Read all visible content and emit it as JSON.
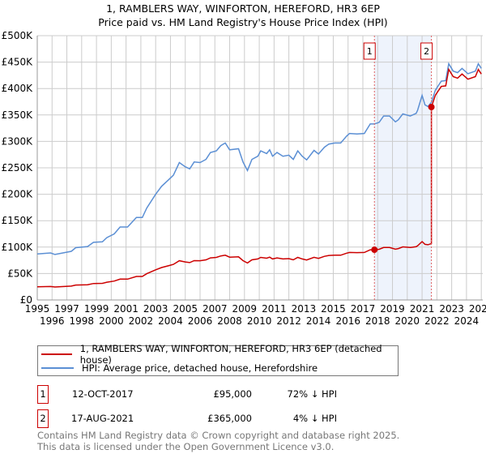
{
  "title": "1, RAMBLERS WAY, WINFORTON, HEREFORD, HR3 6EP",
  "subtitle": "Price paid vs. HM Land Registry's House Price Index (HPI)",
  "chart_data": {
    "type": "line",
    "xlim": [
      1995,
      2025.1
    ],
    "ylim": [
      0,
      500000
    ],
    "x_ticks": [
      "1995",
      "1996",
      "1997",
      "1998",
      "1999",
      "2000",
      "2001",
      "2002",
      "2003",
      "2004",
      "2005",
      "2006",
      "2007",
      "2008",
      "2009",
      "2010",
      "2011",
      "2012",
      "2013",
      "2014",
      "2015",
      "2016",
      "2017",
      "2018",
      "2019",
      "2020",
      "2021",
      "2022",
      "2023",
      "2024",
      "2025"
    ],
    "y_ticks": [
      {
        "v": 0,
        "label": "£0"
      },
      {
        "v": 50000,
        "label": "£50K"
      },
      {
        "v": 100000,
        "label": "£100K"
      },
      {
        "v": 150000,
        "label": "£150K"
      },
      {
        "v": 200000,
        "label": "£200K"
      },
      {
        "v": 250000,
        "label": "£250K"
      },
      {
        "v": 300000,
        "label": "£300K"
      },
      {
        "v": 350000,
        "label": "£350K"
      },
      {
        "v": 400000,
        "label": "£400K"
      },
      {
        "v": 450000,
        "label": "£450K"
      },
      {
        "v": 500000,
        "label": "£500K"
      }
    ],
    "grid": true,
    "hpi_series": {
      "name": "HPI: Average price, detached house, Herefordshire",
      "color": "#5b8fd4",
      "x": [
        1995.0,
        1995.9,
        1996.2,
        1997.3,
        1997.6,
        1998.4,
        1998.8,
        1999.4,
        1999.7,
        2000.2,
        2000.6,
        2001.1,
        2001.7,
        2002.1,
        2002.4,
        2003.0,
        2003.4,
        2003.9,
        2004.2,
        2004.6,
        2005.0,
        2005.3,
        2005.6,
        2006.0,
        2006.4,
        2006.7,
        2007.1,
        2007.4,
        2007.7,
        2008.0,
        2008.6,
        2008.9,
        2009.2,
        2009.5,
        2009.9,
        2010.1,
        2010.5,
        2010.7,
        2010.9,
        2011.2,
        2011.6,
        2012.0,
        2012.3,
        2012.6,
        2012.9,
        2013.2,
        2013.7,
        2014.0,
        2014.4,
        2014.7,
        2015.1,
        2015.5,
        2015.9,
        2016.1,
        2016.6,
        2017.1,
        2017.5,
        2017.78,
        2018.1,
        2018.4,
        2018.8,
        2019.2,
        2019.4,
        2019.7,
        2020.2,
        2020.6,
        2020.7,
        2021.0,
        2021.2,
        2021.4,
        2021.63,
        2021.9,
        2022.3,
        2022.6,
        2022.8,
        2023.1,
        2023.4,
        2023.7,
        2024.1,
        2024.6,
        2024.8,
        2025.0
      ],
      "y": [
        87,
        89,
        86,
        92,
        99,
        101,
        109,
        110,
        118,
        125,
        138,
        138,
        156,
        156,
        174,
        200,
        215,
        228,
        236,
        260,
        252,
        248,
        261,
        260,
        266,
        279,
        282,
        292,
        297,
        284,
        286,
        261,
        245,
        266,
        272,
        282,
        277,
        284,
        272,
        279,
        272,
        274,
        266,
        282,
        272,
        265,
        283,
        276,
        289,
        295,
        297,
        297,
        310,
        315,
        314,
        315,
        333,
        333,
        336,
        348,
        348,
        337,
        341,
        352,
        348,
        353,
        359,
        387,
        369,
        366,
        374,
        397,
        414,
        415,
        447,
        433,
        430,
        438,
        428,
        433,
        447,
        438
      ],
      "y_unit": "thousand GBP"
    },
    "price_series": {
      "name": "1, RAMBLERS WAY, WINFORTON, HEREFORD, HR3 6EP (detached house)",
      "color": "#cc0000"
    },
    "sales": [
      {
        "id": "1",
        "x": 2017.78,
        "date": "12-OCT-2017",
        "price": 95000,
        "price_label": "£95,000",
        "hpi_diff": "72% ↓ HPI"
      },
      {
        "id": "2",
        "x": 2021.63,
        "date": "17-AUG-2021",
        "price": 365000,
        "price_label": "£365,000",
        "hpi_diff": "4% ↓ HPI"
      }
    ],
    "legend": [
      "1, RAMBLERS WAY, WINFORTON, HEREFORD, HR3 6EP (detached house)",
      "HPI: Average price, detached house, Herefordshire"
    ],
    "legend_placement": "below"
  },
  "footer": [
    "Contains HM Land Registry data © Crown copyright and database right 2025.",
    "This data is licensed under the Open Government Licence v3.0."
  ]
}
